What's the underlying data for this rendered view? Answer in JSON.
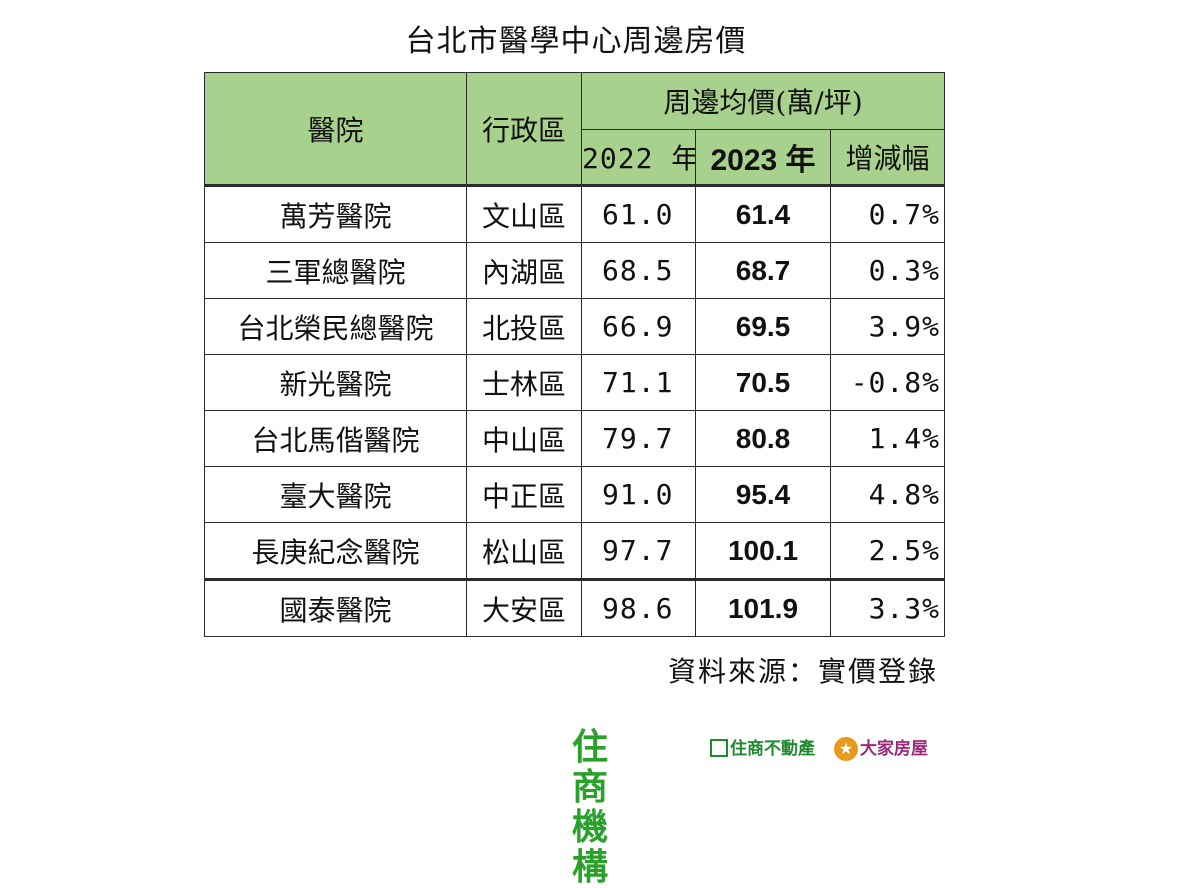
{
  "title": "台北市醫學中心周邊房價",
  "table": {
    "header": {
      "hospital": "醫院",
      "district": "行政區",
      "avg_price": "周邊均價(萬/坪)",
      "year_2022": "2022 年",
      "year_2023": "2023 年",
      "change": "增減幅"
    },
    "rows": [
      {
        "hospital": "萬芳醫院",
        "district": "文山區",
        "y2022": "61.0",
        "y2023": "61.4",
        "change": "0.7%"
      },
      {
        "hospital": "三軍總醫院",
        "district": "內湖區",
        "y2022": "68.5",
        "y2023": "68.7",
        "change": "0.3%"
      },
      {
        "hospital": "台北榮民總醫院",
        "district": "北投區",
        "y2022": "66.9",
        "y2023": "69.5",
        "change": "3.9%"
      },
      {
        "hospital": "新光醫院",
        "district": "士林區",
        "y2022": "71.1",
        "y2023": "70.5",
        "change": "-0.8%"
      },
      {
        "hospital": "台北馬偕醫院",
        "district": "中山區",
        "y2022": "79.7",
        "y2023": "80.8",
        "change": "1.4%"
      },
      {
        "hospital": "臺大醫院",
        "district": "中正區",
        "y2022": "91.0",
        "y2023": "95.4",
        "change": "4.8%"
      },
      {
        "hospital": "長庚紀念醫院",
        "district": "松山區",
        "y2022": "97.7",
        "y2023": "100.1",
        "change": "2.5%"
      },
      {
        "hospital": "國泰醫院",
        "district": "大安區",
        "y2022": "98.6",
        "y2023": "101.9",
        "change": "3.3%"
      }
    ]
  },
  "source": "資料來源：實價登錄",
  "logos": {
    "main": "住商機構",
    "second": "住商不動產",
    "third": "大家房屋"
  },
  "colors": {
    "header_bg": "#a9d18e",
    "logo_green": "#2aa12a",
    "logo_purple": "#9a2a7a"
  }
}
